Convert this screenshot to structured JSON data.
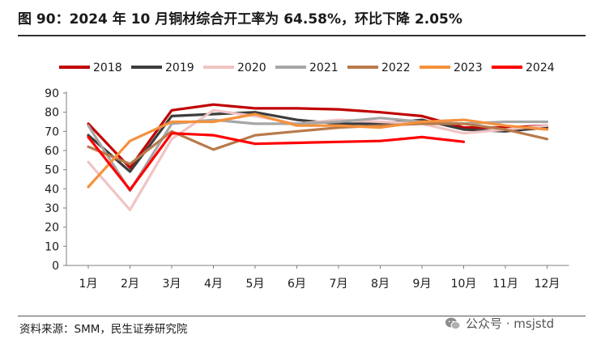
{
  "header": {
    "title": "图 90：2024 年 10 月铜材综合开工率为 64.58%，环比下降 2.05%"
  },
  "footer": {
    "source": "资料来源：SMM，民生证券研究院",
    "watermark": "公众号 · msjstd",
    "watermark_icon": "wechat-icon"
  },
  "chart_data": {
    "type": "line",
    "categories": [
      "1月",
      "2月",
      "3月",
      "4月",
      "5月",
      "6月",
      "7月",
      "8月",
      "9月",
      "10月",
      "11月",
      "12月"
    ],
    "yticks": [
      0,
      10,
      20,
      30,
      40,
      50,
      60,
      70,
      80,
      90
    ],
    "ylim": [
      0,
      90
    ],
    "grid": false,
    "legend_position": "top",
    "series": [
      {
        "name": "2018",
        "color": "#c00000",
        "values": [
          74,
          51,
          81,
          84,
          82,
          82,
          81.5,
          80,
          78,
          72,
          72,
          73
        ]
      },
      {
        "name": "2019",
        "color": "#3d3d3d",
        "values": [
          68,
          49,
          78,
          79,
          80,
          76,
          74,
          74,
          76,
          71,
          70,
          72
        ]
      },
      {
        "name": "2020",
        "color": "#f0c4c4",
        "values": [
          54,
          29,
          66,
          81,
          78,
          74,
          76,
          75,
          74,
          69,
          71,
          73
        ]
      },
      {
        "name": "2021",
        "color": "#a6a6a6",
        "values": [
          73,
          39,
          74,
          76,
          74,
          74,
          75,
          77,
          75,
          74,
          75,
          75
        ]
      },
      {
        "name": "2022",
        "color": "#b87a4b",
        "values": [
          62,
          53,
          70,
          60.5,
          68,
          70,
          72,
          73,
          74,
          74,
          71,
          66
        ]
      },
      {
        "name": "2023",
        "color": "#f5913c",
        "values": [
          41,
          65,
          75,
          75,
          79,
          73,
          73,
          72,
          75,
          76,
          73,
          71
        ]
      },
      {
        "name": "2024",
        "color": "#ff0000",
        "values": [
          67,
          39.5,
          69,
          68,
          63.5,
          64,
          64.5,
          65,
          67,
          64.58,
          null,
          null
        ]
      }
    ]
  }
}
